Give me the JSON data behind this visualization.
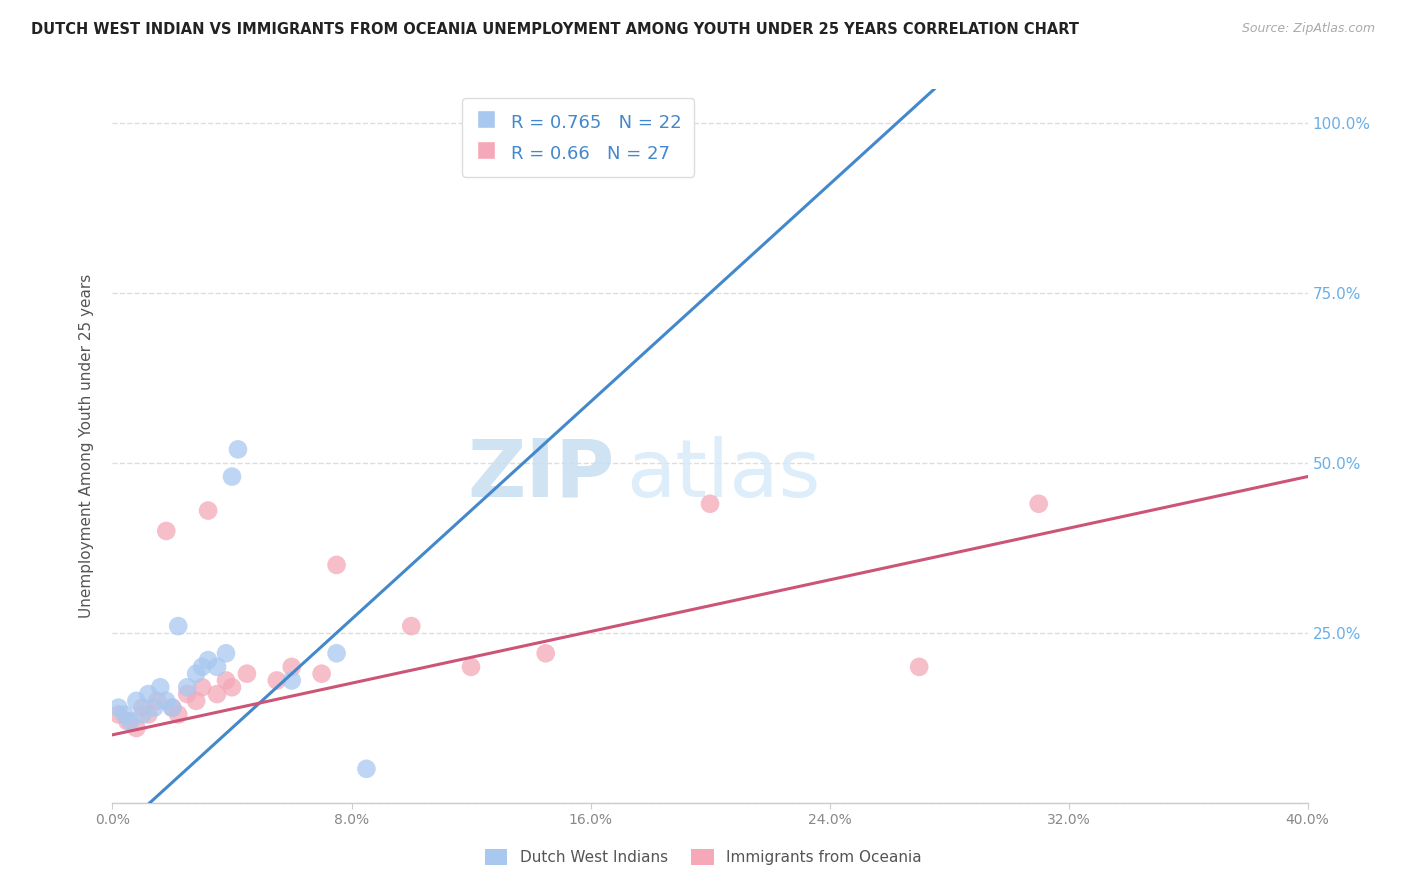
{
  "title": "DUTCH WEST INDIAN VS IMMIGRANTS FROM OCEANIA UNEMPLOYMENT AMONG YOUTH UNDER 25 YEARS CORRELATION CHART",
  "source": "Source: ZipAtlas.com",
  "ylabel": "Unemployment Among Youth under 25 years",
  "ytick_vals": [
    0.0,
    0.25,
    0.5,
    0.75,
    1.0
  ],
  "ytick_labels": [
    "",
    "25.0%",
    "50.0%",
    "75.0%",
    "100.0%"
  ],
  "xtick_vals": [
    0.0,
    0.08,
    0.16,
    0.24,
    0.32,
    0.4
  ],
  "xtick_labels": [
    "0.0%",
    "8.0%",
    "16.0%",
    "24.0%",
    "32.0%",
    "40.0%"
  ],
  "blue_R": 0.765,
  "blue_N": 22,
  "pink_R": 0.66,
  "pink_N": 27,
  "blue_color": "#a8c8f0",
  "pink_color": "#f4a8b8",
  "blue_line_color": "#4488cc",
  "pink_line_color": "#cc5577",
  "watermark_zip": "ZIP",
  "watermark_atlas": "atlas",
  "blue_scatter_x": [
    0.002,
    0.004,
    0.006,
    0.008,
    0.01,
    0.012,
    0.014,
    0.016,
    0.018,
    0.02,
    0.022,
    0.025,
    0.028,
    0.03,
    0.032,
    0.035,
    0.038,
    0.04,
    0.042,
    0.06,
    0.075,
    0.085
  ],
  "blue_scatter_y": [
    0.14,
    0.13,
    0.12,
    0.15,
    0.13,
    0.16,
    0.14,
    0.17,
    0.15,
    0.14,
    0.26,
    0.17,
    0.19,
    0.2,
    0.21,
    0.2,
    0.22,
    0.48,
    0.52,
    0.18,
    0.22,
    0.05
  ],
  "pink_scatter_x": [
    0.002,
    0.005,
    0.008,
    0.01,
    0.012,
    0.015,
    0.018,
    0.02,
    0.022,
    0.025,
    0.028,
    0.03,
    0.032,
    0.035,
    0.038,
    0.04,
    0.045,
    0.055,
    0.06,
    0.07,
    0.075,
    0.1,
    0.12,
    0.145,
    0.2,
    0.27,
    0.31
  ],
  "pink_scatter_y": [
    0.13,
    0.12,
    0.11,
    0.14,
    0.13,
    0.15,
    0.4,
    0.14,
    0.13,
    0.16,
    0.15,
    0.17,
    0.43,
    0.16,
    0.18,
    0.17,
    0.19,
    0.18,
    0.2,
    0.19,
    0.35,
    0.26,
    0.2,
    0.22,
    0.44,
    0.2,
    0.44
  ],
  "blue_line_x": [
    0.0,
    0.4
  ],
  "blue_line_y": [
    -0.05,
    1.55
  ],
  "pink_line_x": [
    0.0,
    0.4
  ],
  "pink_line_y": [
    0.1,
    0.48
  ],
  "legend_label_blue": "Dutch West Indians",
  "legend_label_pink": "Immigrants from Oceania",
  "background_color": "#ffffff",
  "grid_color": "#dddddd",
  "ylim_max": 1.05,
  "xlim_max": 0.4
}
